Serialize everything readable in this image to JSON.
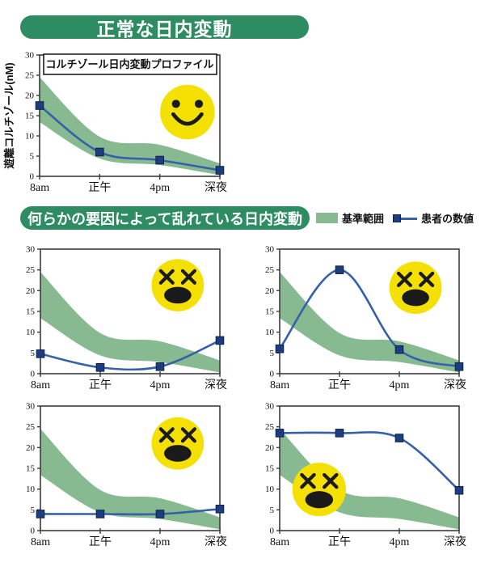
{
  "colors": {
    "banner_green": "#2e8c62",
    "band_green": "#87ba91",
    "line_blue": "#3561a8",
    "marker_navy": "#1c3e80",
    "marker_edge": "#0f2145",
    "face_yellow": "#f5e003",
    "face_ink": "#1a1a1a",
    "axis_ink": "#3c3c3c"
  },
  "banners": {
    "normal": "正常な日内変動",
    "abnormal": "何らかの要因によって乱れている日内変動"
  },
  "legend": {
    "band_label": "基準範囲",
    "line_label": "患者の数値"
  },
  "chart_data": [
    {
      "id": "normal-profile",
      "type": "area+line",
      "title": "コルチゾール日内変動プロファイル",
      "ylabel": "遊離コルチゾール(nM)",
      "xlabel": "",
      "categories": [
        "8am",
        "正午",
        "4pm",
        "深夜"
      ],
      "ylim": [
        0,
        30
      ],
      "yticks": [
        0,
        5,
        10,
        15,
        20,
        25,
        30
      ],
      "grid": false,
      "reference_band": {
        "upper": [
          24.5,
          9.8,
          7.8,
          3.2
        ],
        "lower": [
          13.4,
          4.4,
          2.8,
          0.3
        ]
      },
      "patient_values": [
        17.5,
        6,
        4,
        1.5
      ],
      "face": {
        "type": "happy",
        "cx": 0.82,
        "cy": 0.47,
        "r": 0.225
      }
    },
    {
      "id": "disturbed-low-flat-rise",
      "type": "area+line",
      "title": "",
      "ylabel": "",
      "xlabel": "",
      "categories": [
        "8am",
        "正午",
        "4pm",
        "深夜"
      ],
      "ylim": [
        0,
        30
      ],
      "yticks": [
        0,
        5,
        10,
        15,
        20,
        25,
        30
      ],
      "grid": false,
      "reference_band": {
        "upper": [
          24.5,
          9.8,
          7.8,
          3.2
        ],
        "lower": [
          13.4,
          4.4,
          2.8,
          0.3
        ]
      },
      "patient_values": [
        4.8,
        1.5,
        1.7,
        8
      ],
      "face": {
        "type": "dead",
        "cx": 0.765,
        "cy": 0.29,
        "r": 0.21
      }
    },
    {
      "id": "disturbed-noon-spike",
      "type": "area+line",
      "title": "",
      "ylabel": "",
      "xlabel": "",
      "categories": [
        "8am",
        "正午",
        "4pm",
        "深夜"
      ],
      "ylim": [
        0,
        30
      ],
      "yticks": [
        0,
        5,
        10,
        15,
        20,
        25,
        30
      ],
      "grid": false,
      "reference_band": {
        "upper": [
          24.5,
          9.8,
          7.8,
          3.2
        ],
        "lower": [
          13.4,
          4.4,
          2.8,
          0.3
        ]
      },
      "patient_values": [
        6,
        25,
        5.8,
        1.7
      ],
      "face": {
        "type": "dead",
        "cx": 0.757,
        "cy": 0.31,
        "r": 0.21
      }
    },
    {
      "id": "disturbed-flat-low",
      "type": "area+line",
      "title": "",
      "ylabel": "",
      "xlabel": "",
      "categories": [
        "8am",
        "正午",
        "4pm",
        "深夜"
      ],
      "ylim": [
        0,
        30
      ],
      "yticks": [
        0,
        5,
        10,
        15,
        20,
        25,
        30
      ],
      "grid": false,
      "reference_band": {
        "upper": [
          24.5,
          9.8,
          7.8,
          3.2
        ],
        "lower": [
          13.4,
          4.4,
          2.8,
          0.3
        ]
      },
      "patient_values": [
        4,
        4,
        4,
        5.2
      ],
      "face": {
        "type": "dead",
        "cx": 0.765,
        "cy": 0.3,
        "r": 0.21
      }
    },
    {
      "id": "disturbed-high-all-day",
      "type": "area+line",
      "title": "",
      "ylabel": "",
      "xlabel": "",
      "categories": [
        "8am",
        "正午",
        "4pm",
        "深夜"
      ],
      "ylim": [
        0,
        30
      ],
      "yticks": [
        0,
        5,
        10,
        15,
        20,
        25,
        30
      ],
      "grid": false,
      "reference_band": {
        "upper": [
          24.5,
          9.8,
          7.8,
          3.2
        ],
        "lower": [
          13.4,
          4.4,
          2.8,
          0.3
        ]
      },
      "patient_values": [
        23.5,
        23.5,
        22.3,
        9.7
      ],
      "face": {
        "type": "dead",
        "cx": 0.22,
        "cy": 0.67,
        "r": 0.215
      }
    }
  ]
}
